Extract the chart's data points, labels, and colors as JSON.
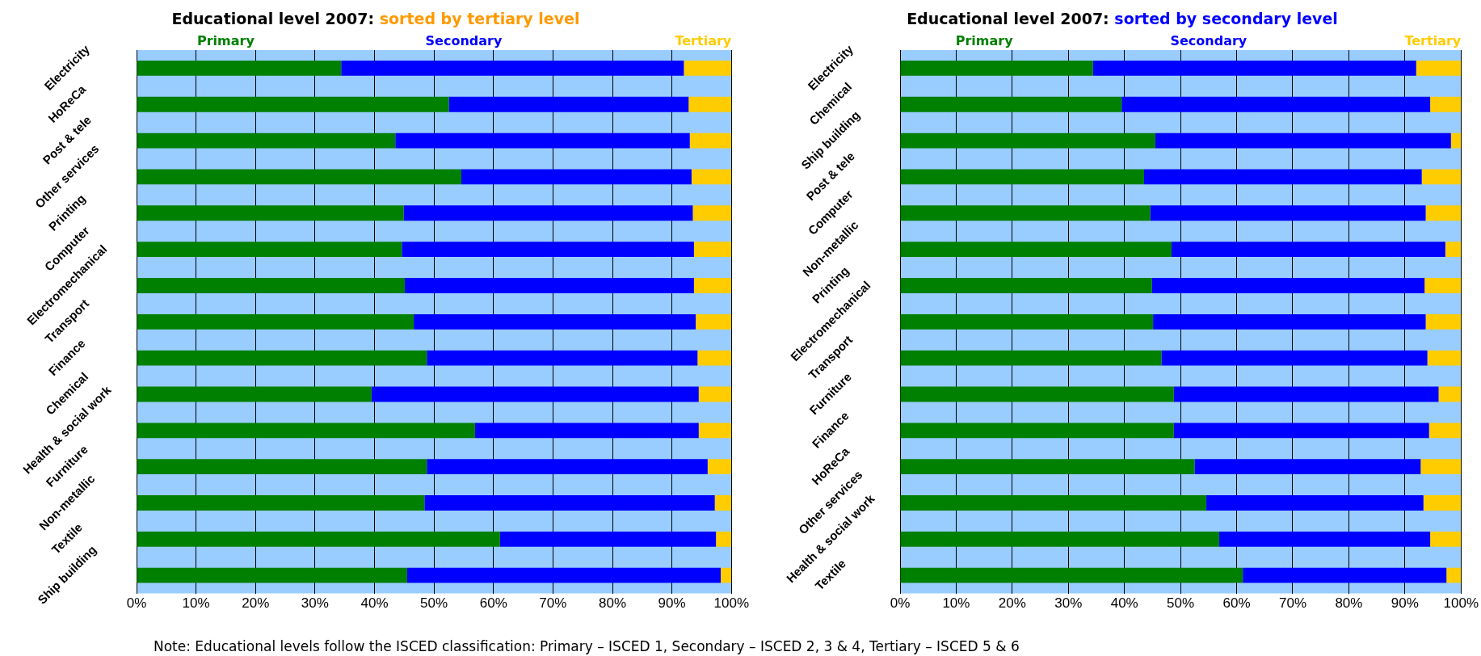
{
  "chart_data": [
    {
      "type": "bar",
      "orientation": "horizontal",
      "stacked": true,
      "title": "Educational level 2007:",
      "subtitle": "sorted by tertiary level",
      "categories": [
        "Electricity",
        "HoReCa",
        "Post & tele",
        "Other services",
        "Printing",
        "Computer",
        "Electromechanical",
        "Transport",
        "Finance",
        "Chemical",
        "Health & social work",
        "Furniture",
        "Non-metallic",
        "Textile",
        "Ship building"
      ],
      "series": [
        {
          "name": "Primary",
          "color": "#008000",
          "values": [
            34.4,
            52.5,
            43.5,
            54.6,
            44.9,
            44.6,
            45.1,
            46.6,
            48.8,
            39.5,
            56.9,
            48.8,
            48.4,
            61.1,
            45.5
          ]
        },
        {
          "name": "Secondary",
          "color": "#0000ff",
          "values": [
            57.6,
            40.3,
            49.5,
            38.7,
            48.6,
            49.1,
            48.6,
            47.4,
            45.5,
            55.0,
            37.6,
            47.2,
            48.8,
            36.3,
            52.7
          ]
        },
        {
          "name": "Tertiary",
          "color": "#ffcc00",
          "values": [
            8.0,
            7.2,
            7.0,
            6.7,
            6.5,
            6.3,
            6.3,
            6.0,
            5.7,
            5.5,
            5.5,
            4.0,
            2.8,
            2.6,
            1.8
          ]
        }
      ],
      "xlim": [
        0,
        100
      ],
      "xticks": [
        {
          "value": 0,
          "label": "0%"
        },
        {
          "value": 10,
          "label": "10%"
        },
        {
          "value": 20,
          "label": "20%"
        },
        {
          "value": 30,
          "label": "30%"
        },
        {
          "value": 40,
          "label": "40%"
        },
        {
          "value": 50,
          "label": "50%"
        },
        {
          "value": 60,
          "label": "60%"
        },
        {
          "value": 70,
          "label": "70%"
        },
        {
          "value": 80,
          "label": "80%"
        },
        {
          "value": 90,
          "label": "90%"
        },
        {
          "value": 100,
          "label": "100%"
        }
      ],
      "grid": "x",
      "legend": "top",
      "annotations": [
        "Note: Educational levels follow the ISCED classification: Primary – ISCED 1, Secondary – ISCED 2, 3 & 4, Tertiary – ISCED 5 & 6"
      ]
    },
    {
      "type": "bar",
      "orientation": "horizontal",
      "stacked": true,
      "title": "Educational level 2007:",
      "subtitle": "sorted by secondary level",
      "categories": [
        "Electricity",
        "Chemical",
        "Ship building",
        "Post & tele",
        "Computer",
        "Non-metallic",
        "Printing",
        "Electromechanical",
        "Transport",
        "Furniture",
        "Finance",
        "HoReCa",
        "Other services",
        "Health & social work",
        "Textile"
      ],
      "series": [
        {
          "name": "Primary",
          "color": "#008000",
          "values": [
            34.4,
            39.5,
            45.5,
            43.5,
            44.6,
            48.4,
            44.9,
            45.1,
            46.6,
            48.8,
            48.8,
            52.5,
            54.6,
            56.9,
            61.1
          ]
        },
        {
          "name": "Secondary",
          "color": "#0000ff",
          "values": [
            57.6,
            55.0,
            52.7,
            49.5,
            49.1,
            48.8,
            48.6,
            48.6,
            47.4,
            47.2,
            45.5,
            40.3,
            38.7,
            37.6,
            36.3
          ]
        },
        {
          "name": "Tertiary",
          "color": "#ffcc00",
          "values": [
            8.0,
            5.5,
            1.8,
            7.0,
            6.3,
            2.8,
            6.5,
            6.3,
            6.0,
            4.0,
            5.7,
            7.2,
            6.7,
            5.5,
            2.6
          ]
        }
      ],
      "xlim": [
        0,
        100
      ],
      "xticks": [
        {
          "value": 0,
          "label": "0%"
        },
        {
          "value": 10,
          "label": "10%"
        },
        {
          "value": 20,
          "label": "20%"
        },
        {
          "value": 30,
          "label": "30%"
        },
        {
          "value": 40,
          "label": "40%"
        },
        {
          "value": 50,
          "label": "50%"
        },
        {
          "value": 60,
          "label": "60%"
        },
        {
          "value": 70,
          "label": "70%"
        },
        {
          "value": 80,
          "label": "80%"
        },
        {
          "value": 90,
          "label": "90%"
        },
        {
          "value": 100,
          "label": "100%"
        }
      ],
      "grid": "x",
      "legend": "top"
    }
  ]
}
